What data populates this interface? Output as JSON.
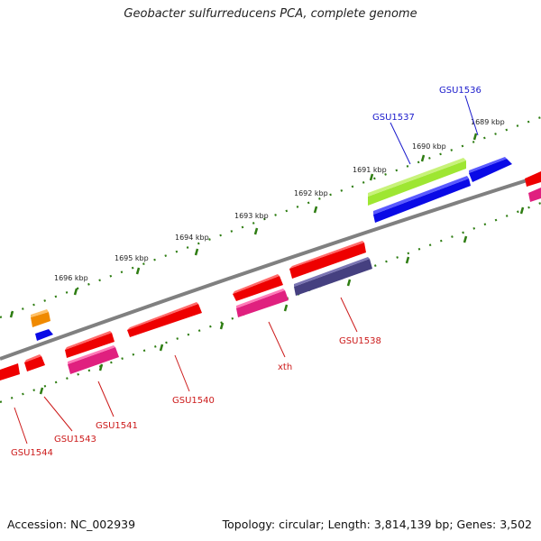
{
  "title": "Geobacter sulfurreducens PCA, complete genome",
  "footer": {
    "accession": "Accession: NC_002939",
    "summary": "Topology: circular; Length: 3,814,139 bp; Genes: 3,502"
  },
  "ticks": [
    "1689 kbp",
    "1690 kbp",
    "1691 kbp",
    "1692 kbp",
    "1693 kbp",
    "1694 kbp",
    "1695 kbp",
    "1696 kbp"
  ],
  "genes_top": [
    "GSU1536",
    "GSU1537"
  ],
  "genes_bottom": [
    "GSU1538",
    "xth",
    "GSU1540",
    "GSU1541",
    "GSU1543",
    "GSU1544"
  ],
  "colors": {
    "backbone": "#808080",
    "tick": "#2e7d12",
    "top_label": "#1a1acc",
    "bottom_label": "#cc1a1a",
    "gene_red": "#ee0000",
    "gene_pink": "#e0207f",
    "gene_blue": "#0a0ae6",
    "gene_green": "#9ee632",
    "gene_purple": "#454080",
    "gene_orange": "#f08a00"
  }
}
